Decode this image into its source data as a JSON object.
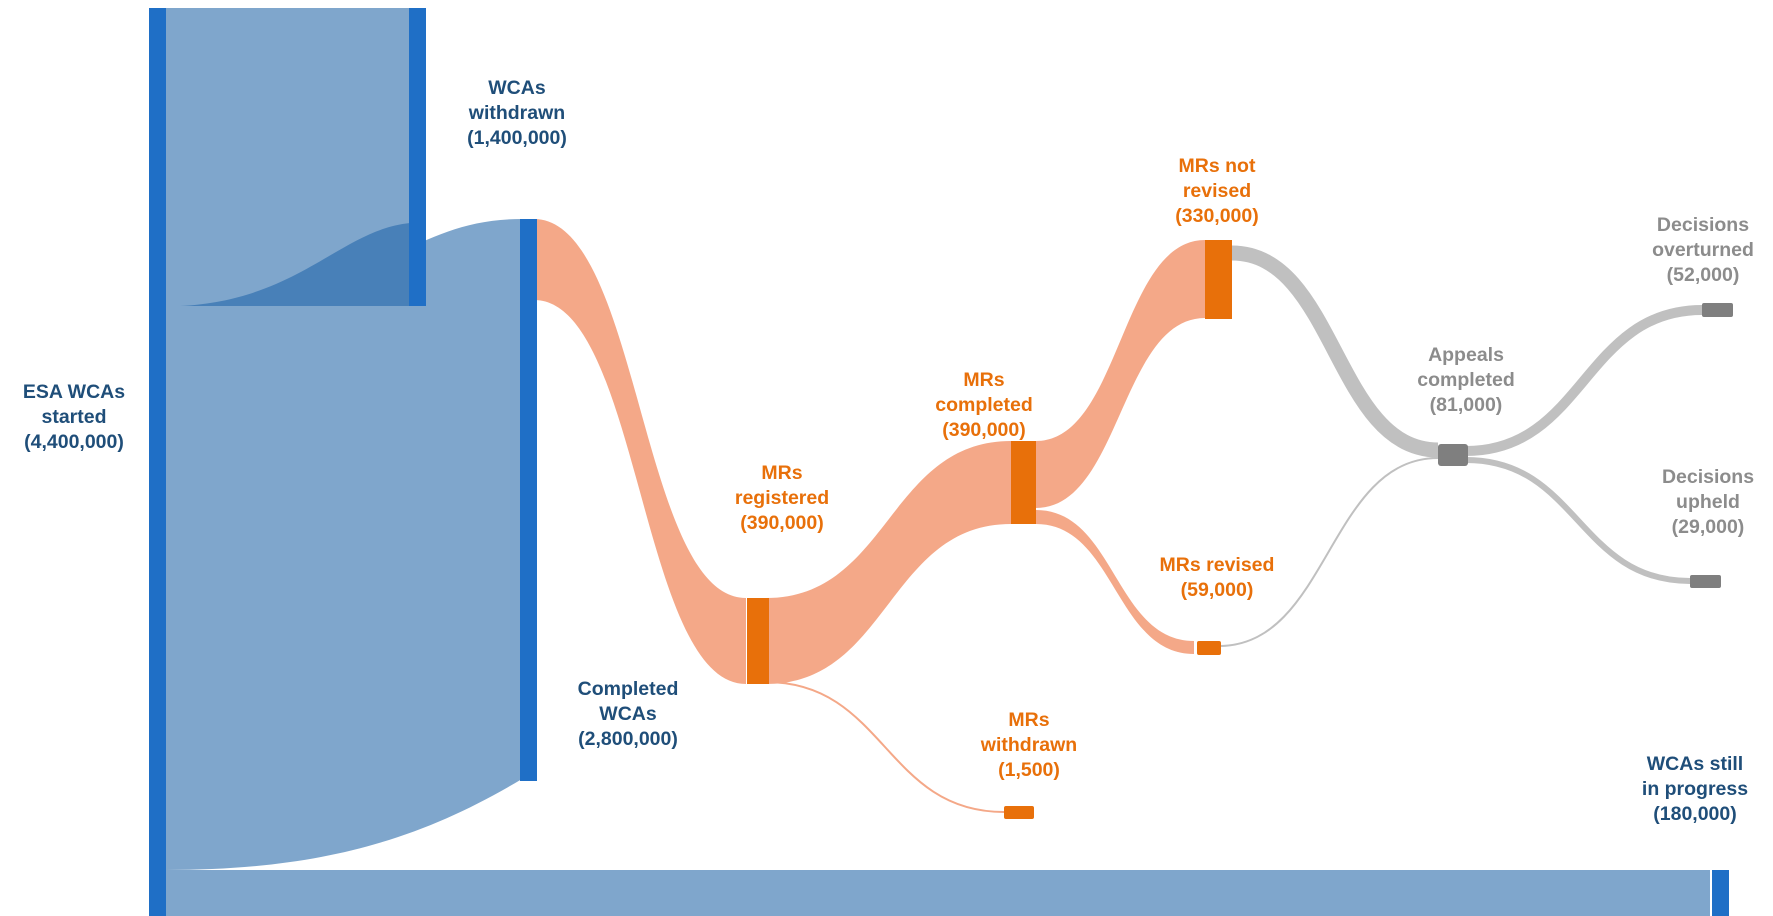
{
  "colors": {
    "blue_node": "#1f6fc6",
    "blue_flow": "#7fa6cc",
    "blue_flow_dark": "#3e79b4",
    "blue_text": "#1f4e79",
    "orange_node": "#e8700a",
    "orange_flow": "#f4a888",
    "orange_text": "#e8700a",
    "grey_node": "#7f7f7f",
    "grey_flow": "#c0c0c0",
    "grey_text": "#8c8c8c"
  },
  "nodes": {
    "esa_started": {
      "lines": [
        "ESA WCAs",
        "started",
        "(4,400,000)"
      ],
      "group": "blue"
    },
    "wcas_withdrawn": {
      "lines": [
        "WCAs",
        "withdrawn",
        "(1,400,000)"
      ],
      "group": "blue"
    },
    "completed_wcas": {
      "lines": [
        "Completed",
        "WCAs",
        "(2,800,000)"
      ],
      "group": "blue"
    },
    "wcas_in_progress": {
      "lines": [
        "WCAs still",
        "in progress",
        "(180,000)"
      ],
      "group": "blue"
    },
    "mrs_registered": {
      "lines": [
        "MRs",
        "registered",
        "(390,000)"
      ],
      "group": "orange"
    },
    "mrs_withdrawn": {
      "lines": [
        "MRs",
        "withdrawn",
        "(1,500)"
      ],
      "group": "orange"
    },
    "mrs_completed": {
      "lines": [
        "MRs",
        "completed",
        "(390,000)"
      ],
      "group": "orange"
    },
    "mrs_not_revised": {
      "lines": [
        "MRs not",
        "revised",
        "(330,000)"
      ],
      "group": "orange"
    },
    "mrs_revised": {
      "lines": [
        "MRs revised",
        "(59,000)"
      ],
      "group": "orange"
    },
    "appeals_completed": {
      "lines": [
        "Appeals",
        "completed",
        "(81,000)"
      ],
      "group": "grey"
    },
    "decisions_overturned": {
      "lines": [
        "Decisions",
        "overturned",
        "(52,000)"
      ],
      "group": "grey"
    },
    "decisions_upheld": {
      "lines": [
        "Decisions",
        "upheld",
        "(29,000)"
      ],
      "group": "grey"
    }
  },
  "flows": [
    {
      "from": "esa_started",
      "to": "wcas_withdrawn",
      "value": 1400000
    },
    {
      "from": "esa_started",
      "to": "completed_wcas",
      "value": 2800000
    },
    {
      "from": "esa_started",
      "to": "wcas_in_progress",
      "value": 180000
    },
    {
      "from": "completed_wcas",
      "to": "mrs_registered",
      "value": 390000
    },
    {
      "from": "mrs_registered",
      "to": "mrs_completed",
      "value": 390000
    },
    {
      "from": "mrs_registered",
      "to": "mrs_withdrawn",
      "value": 1500
    },
    {
      "from": "mrs_completed",
      "to": "mrs_not_revised",
      "value": 330000
    },
    {
      "from": "mrs_completed",
      "to": "mrs_revised",
      "value": 59000
    },
    {
      "from": "mrs_not_revised",
      "to": "appeals_completed",
      "value": 73000
    },
    {
      "from": "mrs_revised",
      "to": "appeals_completed",
      "value": 8000
    },
    {
      "from": "appeals_completed",
      "to": "decisions_overturned",
      "value": 52000
    },
    {
      "from": "appeals_completed",
      "to": "decisions_upheld",
      "value": 29000
    }
  ]
}
